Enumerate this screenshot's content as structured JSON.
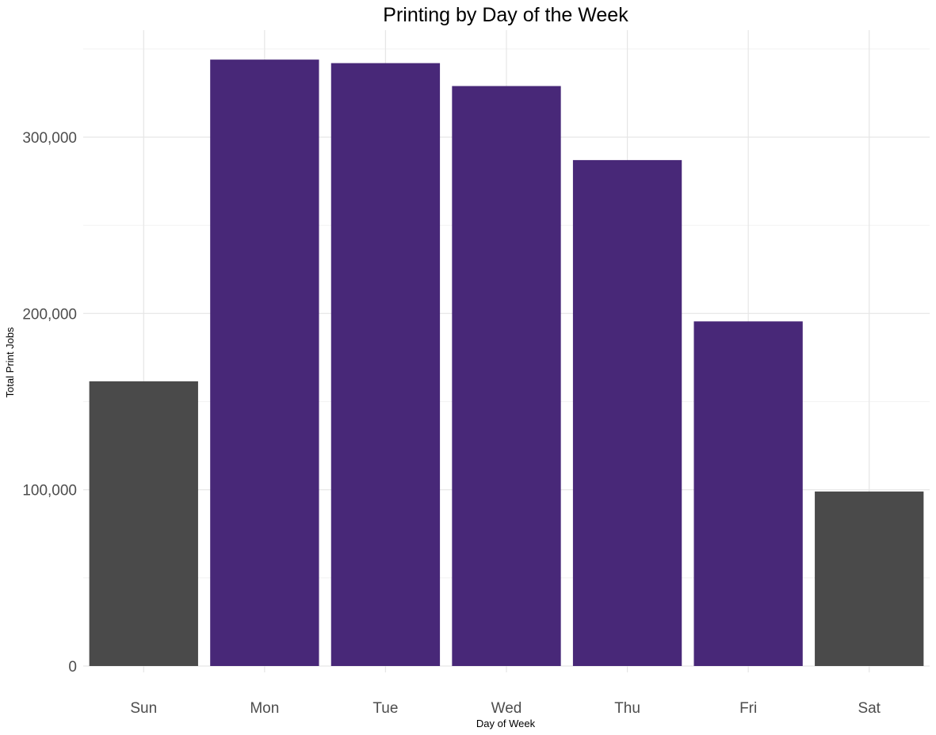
{
  "chart_data": {
    "type": "bar",
    "title": "Printing by Day of the Week",
    "xlabel": "Day of Week",
    "ylabel": "Total Print Jobs",
    "categories": [
      "Sun",
      "Mon",
      "Tue",
      "Wed",
      "Thu",
      "Fri",
      "Sat"
    ],
    "values": [
      161500,
      344000,
      342000,
      329000,
      287000,
      195500,
      99000
    ],
    "bar_colors": [
      "#4a4a4a",
      "#482878",
      "#482878",
      "#482878",
      "#482878",
      "#482878",
      "#4a4a4a"
    ],
    "ylim": [
      0,
      350000
    ],
    "yticks": [
      0,
      100000,
      200000,
      300000
    ],
    "ytick_labels": [
      "0",
      "100,000",
      "200,000",
      "300,000"
    ],
    "grid": true,
    "legend": "none"
  }
}
